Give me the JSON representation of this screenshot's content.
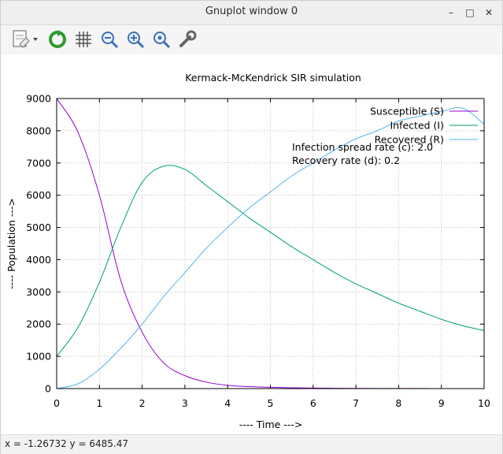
{
  "window": {
    "title": "Gnuplot window 0"
  },
  "titlebar": {
    "minimize_glyph": "–",
    "maximize_glyph": "□",
    "close_glyph": "✕"
  },
  "toolbar": {
    "icons": [
      "export-icon",
      "replot-icon",
      "grid-icon",
      "zoom-out-icon",
      "zoom-in-icon",
      "zoom-reset-icon",
      "settings-icon"
    ]
  },
  "status": {
    "text": "x = -1.26732 y = 6485.47"
  },
  "chart_data": {
    "type": "line",
    "title": "Kermack-McKendrick SIR simulation",
    "xlabel": "---- Time --->",
    "ylabel": "---- Population --->",
    "xlim": [
      0,
      10
    ],
    "ylim": [
      0,
      9000
    ],
    "xticks": [
      0,
      1,
      2,
      3,
      4,
      5,
      6,
      7,
      8,
      9,
      10
    ],
    "yticks": [
      0,
      1000,
      2000,
      3000,
      4000,
      5000,
      6000,
      7000,
      8000,
      9000
    ],
    "grid": true,
    "legend_placement": "top-right",
    "annotations": [
      "Infection spread rate (c): 2.0",
      "Recovery rate (d): 0.2"
    ],
    "x": [
      0,
      0.5,
      1,
      1.5,
      2,
      2.5,
      3,
      3.5,
      4,
      4.5,
      5,
      5.5,
      6,
      6.5,
      7,
      7.5,
      8,
      8.5,
      9,
      9.5,
      10
    ],
    "series": [
      {
        "name": "Susceptible (S)",
        "color": "#9400d3",
        "values": [
          9000,
          7950,
          6000,
          3350,
          1750,
          800,
          400,
          200,
          100,
          60,
          40,
          25,
          15,
          10,
          6,
          4,
          3,
          2,
          1,
          1,
          0
        ]
      },
      {
        "name": "Infected (I)",
        "color": "#009e73",
        "values": [
          1000,
          1900,
          3300,
          5000,
          6400,
          6900,
          6800,
          6300,
          5800,
          5300,
          4850,
          4400,
          4000,
          3600,
          3250,
          2950,
          2650,
          2400,
          2150,
          1950,
          1800
        ]
      },
      {
        "name": "Recovered (R)",
        "color": "#56b4e9",
        "values": [
          0,
          150,
          600,
          1250,
          2000,
          2850,
          3600,
          4350,
          5000,
          5600,
          6100,
          6600,
          7000,
          7400,
          7750,
          8000,
          8300,
          8450,
          8600,
          8700,
          8200
        ]
      }
    ]
  }
}
